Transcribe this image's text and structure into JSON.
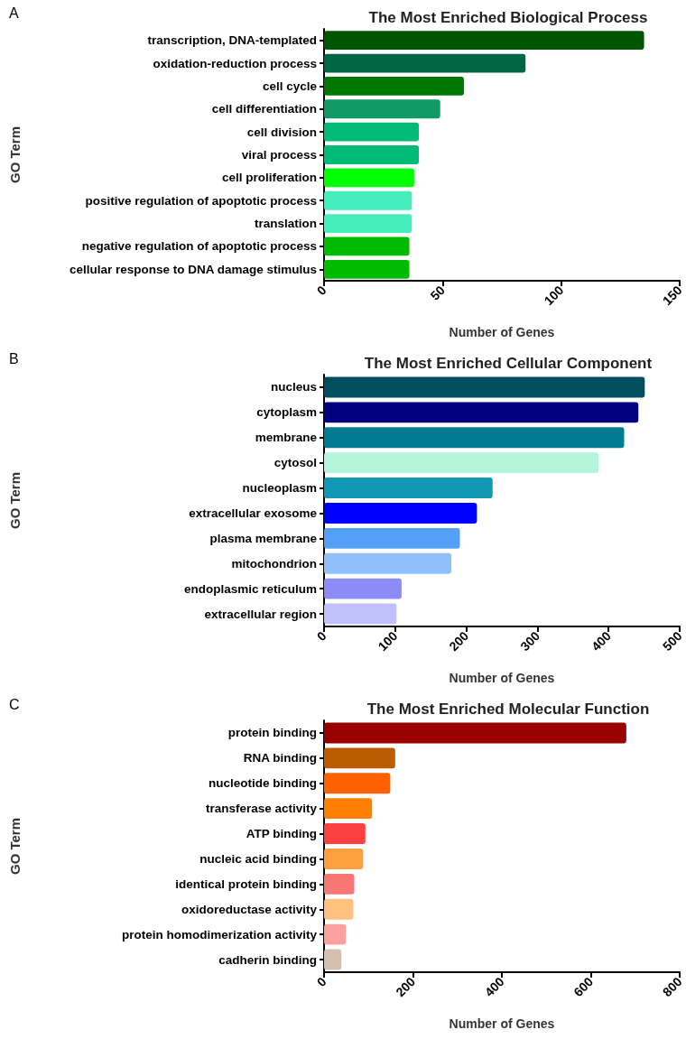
{
  "chart_data": [
    {
      "type": "bar",
      "orientation": "horizontal",
      "title": "The Most Enriched Biological Process",
      "xlabel": "Number of Genes",
      "ylabel": "GO Term",
      "annotations": [
        "A"
      ],
      "categories": [
        "transcription, DNA-templated",
        "oxidation-reduction process",
        "cell cycle",
        "cell differentiation",
        "cell division",
        "viral process",
        "cell proliferation",
        "positive regulation of apoptotic process",
        "translation",
        "negative regulation of apoptotic process",
        "cellular response to DNA damage stimulus"
      ],
      "values": [
        135,
        85,
        59,
        49,
        40,
        40,
        38,
        37,
        37,
        36,
        36
      ],
      "colors": [
        "#005500",
        "#006644",
        "#007700",
        "#119966",
        "#00bb77",
        "#00bb77",
        "#00ff00",
        "#44eebb",
        "#44eebb",
        "#00bb00",
        "#00bb00"
      ],
      "xlim": [
        0,
        150
      ],
      "xticks": [
        0,
        50,
        100,
        150
      ],
      "grid": false
    },
    {
      "type": "bar",
      "orientation": "horizontal",
      "title": "The Most Enriched Cellular Component",
      "xlabel": "Number of Genes",
      "ylabel": "GO Term",
      "annotations": [
        "B"
      ],
      "categories": [
        "nucleus",
        "cytoplasm",
        "membrane",
        "cytosol",
        "nucleoplasm",
        "extracellular exosome",
        "plasma membrane",
        "mitochondrion",
        "endoplasmic reticulum",
        "extracellular region"
      ],
      "values": [
        451,
        442,
        422,
        386,
        237,
        215,
        191,
        179,
        109,
        102
      ],
      "colors": [
        "#004d5e",
        "#000080",
        "#007b91",
        "#b3f5dd",
        "#1199b3",
        "#0000ff",
        "#55a0f7",
        "#90c0f7",
        "#8c8cf7",
        "#c0c0fb"
      ],
      "xlim": [
        0,
        500
      ],
      "xticks": [
        0,
        100,
        200,
        300,
        400,
        500
      ],
      "grid": false
    },
    {
      "type": "bar",
      "orientation": "horizontal",
      "title": "The Most Enriched Molecular Function",
      "xlabel": "Number of Genes",
      "ylabel": "GO Term",
      "annotations": [
        "C"
      ],
      "categories": [
        "protein binding",
        "RNA binding",
        "nucleotide binding",
        "transferase activity",
        "ATP binding",
        "nucleic acid binding",
        "identical protein binding",
        "oxidoreductase activity",
        "protein homodimerization activity",
        "cadherin binding"
      ],
      "values": [
        680,
        160,
        149,
        108,
        93,
        88,
        68,
        66,
        49,
        39
      ],
      "colors": [
        "#990000",
        "#bb5c00",
        "#ff6000",
        "#ff8000",
        "#fb4040",
        "#ffa040",
        "#f77777",
        "#ffc080",
        "#ffa0a0",
        "#d5c0b0"
      ],
      "xlim": [
        0,
        800
      ],
      "xticks": [
        0,
        200,
        400,
        600,
        800
      ],
      "grid": false
    }
  ]
}
